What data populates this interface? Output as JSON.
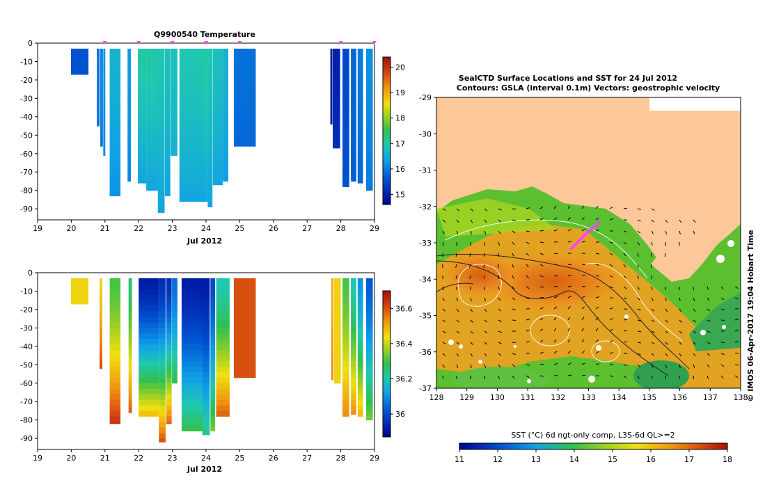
{
  "chart_data": [
    {
      "type": "heatmap",
      "title": "Q9900540  Temperature",
      "xlabel": "Jul 2012",
      "ylabel": "",
      "x_ticks": [
        "19",
        "20",
        "21",
        "22",
        "23",
        "24",
        "25",
        "26",
        "27",
        "28",
        "29"
      ],
      "xlim": [
        19,
        29
      ],
      "y_ticks": [
        "0",
        "-10",
        "-20",
        "-30",
        "-40",
        "-50",
        "-60",
        "-70",
        "-80",
        "-90"
      ],
      "ylim": [
        -96,
        0
      ],
      "colorbar": {
        "ticks": [
          "15",
          "16",
          "17",
          "18",
          "19",
          "20"
        ],
        "range": [
          14.6,
          20.4
        ]
      },
      "profile_markers_day": [
        21.0,
        22.0,
        23.0,
        24.0,
        25.0,
        28.0,
        29.0
      ],
      "profiles": [
        {
          "day": 20.25,
          "width": 0.52,
          "max_depth": 17,
          "surface": 15.6,
          "bottom": 15.6
        },
        {
          "day": 20.8,
          "width": 0.08,
          "max_depth": 45,
          "surface": 15.9,
          "bottom": 15.9
        },
        {
          "day": 20.9,
          "width": 0.08,
          "max_depth": 56,
          "surface": 16.1,
          "bottom": 16.0
        },
        {
          "day": 20.98,
          "width": 0.06,
          "max_depth": 61,
          "surface": 16.2,
          "bottom": 16.1
        },
        {
          "day": 21.3,
          "width": 0.32,
          "max_depth": 83,
          "surface": 16.6,
          "bottom": 16.2
        },
        {
          "day": 21.72,
          "width": 0.1,
          "max_depth": 75,
          "surface": 16.3,
          "bottom": 16.1
        },
        {
          "day": 22.1,
          "width": 0.25,
          "max_depth": 76,
          "surface": 17.0,
          "bottom": 16.4
        },
        {
          "day": 22.4,
          "width": 0.35,
          "max_depth": 80,
          "surface": 17.0,
          "bottom": 16.4
        },
        {
          "day": 22.67,
          "width": 0.2,
          "max_depth": 92,
          "surface": 16.9,
          "bottom": 16.4
        },
        {
          "day": 22.86,
          "width": 0.16,
          "max_depth": 83,
          "surface": 16.8,
          "bottom": 16.4
        },
        {
          "day": 23.05,
          "width": 0.2,
          "max_depth": 61,
          "surface": 16.8,
          "bottom": 16.6
        },
        {
          "day": 23.55,
          "width": 0.68,
          "max_depth": 86,
          "surface": 16.9,
          "bottom": 16.4
        },
        {
          "day": 23.95,
          "width": 0.2,
          "max_depth": 86,
          "surface": 17.0,
          "bottom": 16.4
        },
        {
          "day": 24.12,
          "width": 0.14,
          "max_depth": 89,
          "surface": 16.9,
          "bottom": 16.4
        },
        {
          "day": 24.35,
          "width": 0.3,
          "max_depth": 77,
          "surface": 16.8,
          "bottom": 16.4
        },
        {
          "day": 24.58,
          "width": 0.16,
          "max_depth": 75,
          "surface": 16.6,
          "bottom": 16.3
        },
        {
          "day": 25.15,
          "width": 0.65,
          "max_depth": 56,
          "surface": 15.9,
          "bottom": 15.8
        },
        {
          "day": 27.72,
          "width": 0.06,
          "max_depth": 44,
          "surface": 14.9,
          "bottom": 14.9
        },
        {
          "day": 27.87,
          "width": 0.22,
          "max_depth": 57,
          "surface": 15.0,
          "bottom": 15.2
        },
        {
          "day": 28.15,
          "width": 0.2,
          "max_depth": 78,
          "surface": 15.5,
          "bottom": 15.6
        },
        {
          "day": 28.38,
          "width": 0.16,
          "max_depth": 75,
          "surface": 15.8,
          "bottom": 15.7
        },
        {
          "day": 28.58,
          "width": 0.16,
          "max_depth": 76,
          "surface": 16.0,
          "bottom": 15.8
        },
        {
          "day": 28.85,
          "width": 0.2,
          "max_depth": 80,
          "surface": 16.2,
          "bottom": 16.0
        }
      ]
    },
    {
      "type": "heatmap",
      "title": "",
      "xlabel": "Jul 2012",
      "ylabel": "",
      "x_ticks": [
        "19",
        "20",
        "21",
        "22",
        "23",
        "24",
        "25",
        "26",
        "27",
        "28",
        "29"
      ],
      "xlim": [
        19,
        29
      ],
      "y_ticks": [
        "0",
        "-10",
        "-20",
        "-30",
        "-40",
        "-50",
        "-60",
        "-70",
        "-80",
        "-90"
      ],
      "ylim": [
        -96,
        0
      ],
      "colorbar": {
        "ticks": [
          "36",
          "36.2",
          "36.4",
          "36.6"
        ],
        "range": [
          35.87,
          36.7
        ]
      },
      "profiles": [
        {
          "day": 20.25,
          "width": 0.52,
          "max_depth": 17,
          "surface": 36.45,
          "bottom": 36.45
        },
        {
          "day": 20.88,
          "width": 0.08,
          "max_depth": 52,
          "surface": 36.45,
          "bottom": 36.62
        },
        {
          "day": 21.3,
          "width": 0.32,
          "max_depth": 82,
          "surface": 36.3,
          "bottom": 36.65
        },
        {
          "day": 21.75,
          "width": 0.1,
          "max_depth": 76,
          "surface": 36.25,
          "bottom": 36.6
        },
        {
          "day": 22.3,
          "width": 0.6,
          "max_depth": 78,
          "surface": 35.92,
          "bottom": 36.5
        },
        {
          "day": 22.7,
          "width": 0.2,
          "max_depth": 92,
          "surface": 35.95,
          "bottom": 36.62
        },
        {
          "day": 22.9,
          "width": 0.16,
          "max_depth": 82,
          "surface": 35.95,
          "bottom": 36.6
        },
        {
          "day": 23.07,
          "width": 0.16,
          "max_depth": 60,
          "surface": 36.05,
          "bottom": 36.3
        },
        {
          "day": 23.6,
          "width": 0.65,
          "max_depth": 86,
          "surface": 35.92,
          "bottom": 36.3
        },
        {
          "day": 24.0,
          "width": 0.22,
          "max_depth": 88,
          "surface": 35.92,
          "bottom": 36.25
        },
        {
          "day": 24.2,
          "width": 0.14,
          "max_depth": 86,
          "surface": 36.0,
          "bottom": 36.35
        },
        {
          "day": 24.5,
          "width": 0.4,
          "max_depth": 78,
          "surface": 36.2,
          "bottom": 36.6
        },
        {
          "day": 25.15,
          "width": 0.65,
          "max_depth": 57,
          "surface": 36.6,
          "bottom": 36.6
        },
        {
          "day": 27.75,
          "width": 0.06,
          "max_depth": 58,
          "surface": 36.5,
          "bottom": 36.55
        },
        {
          "day": 27.9,
          "width": 0.2,
          "max_depth": 60,
          "surface": 36.45,
          "bottom": 36.45
        },
        {
          "day": 28.15,
          "width": 0.2,
          "max_depth": 78,
          "surface": 36.3,
          "bottom": 36.55
        },
        {
          "day": 28.38,
          "width": 0.16,
          "max_depth": 77,
          "surface": 36.2,
          "bottom": 36.55
        },
        {
          "day": 28.58,
          "width": 0.16,
          "max_depth": 78,
          "surface": 36.1,
          "bottom": 36.5
        },
        {
          "day": 28.85,
          "width": 0.2,
          "max_depth": 80,
          "surface": 36.02,
          "bottom": 36.35
        }
      ]
    },
    {
      "type": "heatmap",
      "title": "SealCTD Surface Locations and SST for 24 Jul 2012",
      "subtitle": "Contours: GSLA (interval 0.1m) Vectors: geostrophic velocity",
      "x_ticks": [
        "128",
        "129",
        "130",
        "131",
        "132",
        "133",
        "134",
        "135",
        "136",
        "137",
        "138"
      ],
      "xlim": [
        128,
        138
      ],
      "y_ticks": [
        "-29",
        "-30",
        "-31",
        "-32",
        "-33",
        "-34",
        "-35",
        "-36",
        "-37"
      ],
      "ylim": [
        -37,
        -29
      ],
      "colorbar": {
        "label": "SST (°C) 6d ngt-only comp, L3S-6d QL>=2",
        "ticks": [
          "11",
          "12",
          "13",
          "14",
          "15",
          "16",
          "17",
          "18"
        ],
        "range": [
          11,
          18
        ]
      },
      "side_text": "© IMOS 06-Apr-2017 19:04 Hobart Time",
      "colors": {
        "land": "#fcc899",
        "ocean_mid": "#f0a020",
        "track": "#ff44ff"
      }
    }
  ]
}
